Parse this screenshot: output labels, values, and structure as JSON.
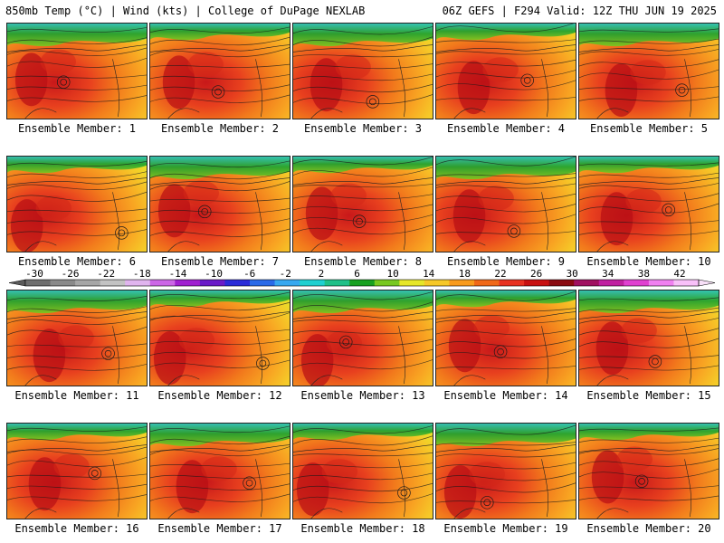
{
  "header": {
    "left": "850mb Temp (°C) | Wind (kts) | College of DuPage NEXLAB",
    "right": "06Z GEFS | F294 Valid: 12Z THU JUN 19 2025"
  },
  "colorbar": {
    "tick_labels": [
      "-30",
      "-26",
      "-22",
      "-18",
      "-14",
      "-10",
      "-6",
      "-2",
      "2",
      "6",
      "10",
      "14",
      "18",
      "22",
      "26",
      "30",
      "34",
      "38",
      "42"
    ],
    "colors": [
      "#6e6e6e",
      "#8a8a8a",
      "#a6a6a6",
      "#c3c3c3",
      "#e0b4ee",
      "#cc66e6",
      "#a020d0",
      "#6a1ac8",
      "#2a2ad8",
      "#2a6ae8",
      "#38a8f0",
      "#20d0d0",
      "#20c088",
      "#18a020",
      "#78c820",
      "#e6e628",
      "#f6c828",
      "#f89a1c",
      "#f06818",
      "#e83020",
      "#c81010",
      "#8a0a10",
      "#a01060",
      "#c020a0",
      "#e040d0",
      "#f080f0",
      "#f8c0f8"
    ]
  },
  "panels": [
    {
      "label": "Ensemble Member: 1"
    },
    {
      "label": "Ensemble Member: 2"
    },
    {
      "label": "Ensemble Member: 3"
    },
    {
      "label": "Ensemble Member: 4"
    },
    {
      "label": "Ensemble Member: 5"
    },
    {
      "label": "Ensemble Member: 6"
    },
    {
      "label": "Ensemble Member: 7"
    },
    {
      "label": "Ensemble Member: 8"
    },
    {
      "label": "Ensemble Member: 9"
    },
    {
      "label": "Ensemble Member: 10"
    },
    {
      "label": "Ensemble Member: 11"
    },
    {
      "label": "Ensemble Member: 12"
    },
    {
      "label": "Ensemble Member: 13"
    },
    {
      "label": "Ensemble Member: 14"
    },
    {
      "label": "Ensemble Member: 15"
    },
    {
      "label": "Ensemble Member: 16"
    },
    {
      "label": "Ensemble Member: 17"
    },
    {
      "label": "Ensemble Member: 18"
    },
    {
      "label": "Ensemble Member: 19"
    },
    {
      "label": "Ensemble Member: 20"
    }
  ]
}
